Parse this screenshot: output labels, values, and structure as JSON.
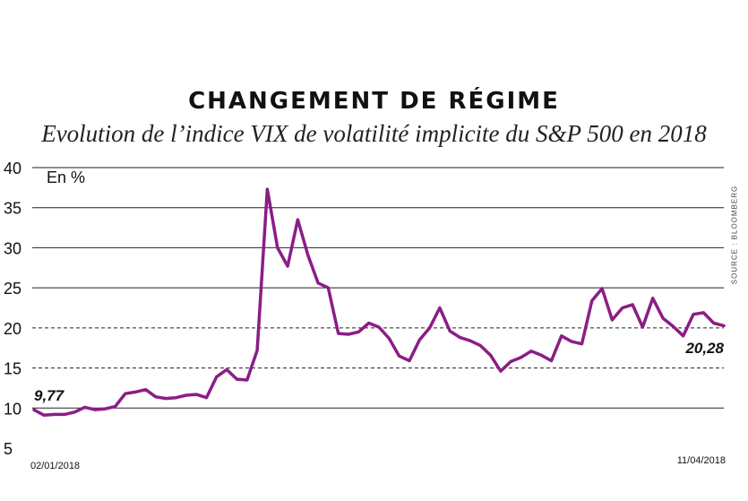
{
  "chart_data": {
    "type": "line",
    "title": "CHANGEMENT DE RÉGIME",
    "subtitle": "Evolution de l’indice VIX de volatilité implicite du S&P 500 en 2018",
    "ylabel": "En %",
    "source": "SOURCE : BLOOMBERG",
    "ylim": [
      5,
      40
    ],
    "y_ticks": [
      "5",
      "10",
      "15",
      "20",
      "25",
      "30",
      "35",
      "40"
    ],
    "x_labels": {
      "start": "02/01/2018",
      "end": "11/04/2018"
    },
    "annotations": {
      "start_value": "9,77",
      "end_value": "20,28"
    },
    "reference_lines": [
      15,
      20
    ],
    "colors": {
      "line": "#8b1d86",
      "grid": "#222222"
    },
    "series": [
      {
        "values": [
          9.77,
          9.1,
          9.2,
          9.2,
          9.5,
          10.1,
          9.8,
          9.9,
          10.2,
          11.8,
          12.0,
          12.3,
          11.4,
          11.2,
          11.3,
          11.6,
          11.7,
          11.3,
          13.9,
          14.8,
          13.6,
          13.5,
          17.2,
          37.3,
          30.0,
          27.7,
          33.5,
          29.1,
          25.6,
          25.0,
          19.3,
          19.2,
          19.5,
          20.6,
          20.1,
          18.7,
          16.5,
          15.9,
          18.5,
          20.0,
          22.5,
          19.6,
          18.8,
          18.4,
          17.8,
          16.6,
          14.6,
          15.8,
          16.3,
          17.1,
          16.6,
          15.9,
          19.0,
          18.3,
          18.0,
          23.4,
          24.9,
          21.0,
          22.5,
          22.9,
          20.1,
          23.7,
          21.2,
          20.2,
          19.0,
          21.7,
          21.9,
          20.6,
          20.28
        ]
      }
    ]
  }
}
